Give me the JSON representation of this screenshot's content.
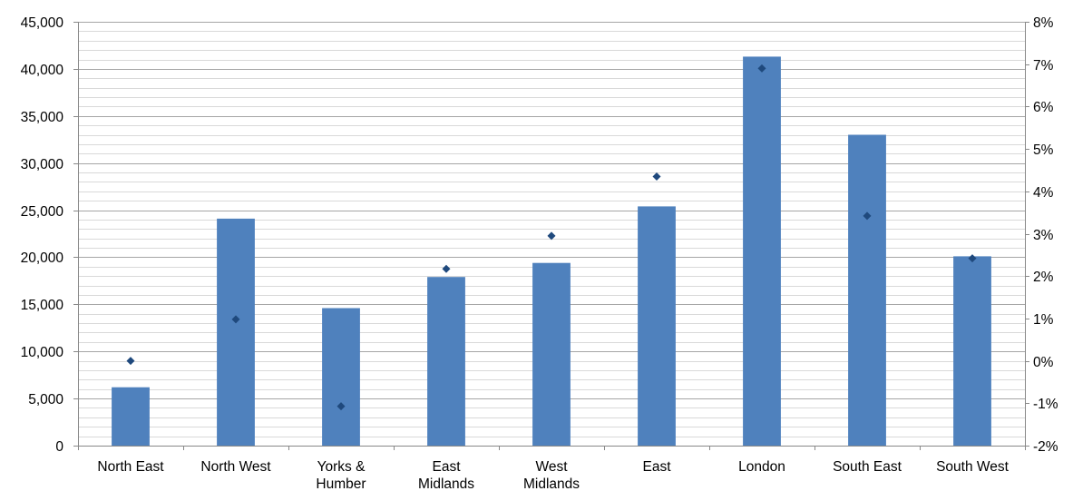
{
  "chart_data": {
    "type": "bar",
    "categories": [
      [
        "North East"
      ],
      [
        "North West"
      ],
      [
        "Yorks &",
        "Humber"
      ],
      [
        "East",
        "Midlands"
      ],
      [
        "West",
        "Midlands"
      ],
      [
        "East"
      ],
      [
        "London"
      ],
      [
        "South East"
      ],
      [
        "South West"
      ]
    ],
    "series": [
      {
        "type": "bar",
        "axis": "left",
        "color": "#4f81bd",
        "values": [
          6200,
          24100,
          14600,
          17900,
          19400,
          25400,
          41300,
          33000,
          20100
        ]
      },
      {
        "type": "scatter",
        "axis": "right",
        "marker": "diamond",
        "color": "#1f497d",
        "values": [
          0.0,
          0.98,
          -1.07,
          2.17,
          2.95,
          4.35,
          6.9,
          3.42,
          2.42
        ]
      }
    ],
    "y_left": {
      "min": 0,
      "max": 45000,
      "major": 5000,
      "minor": 1000,
      "tick_labels": [
        "0",
        "5,000",
        "10,000",
        "15,000",
        "20,000",
        "25,000",
        "30,000",
        "35,000",
        "40,000",
        "45,000"
      ]
    },
    "y_right": {
      "min": -2,
      "max": 8,
      "major": 1,
      "tick_labels": [
        "-2%",
        "-1%",
        "0%",
        "1%",
        "2%",
        "3%",
        "4%",
        "5%",
        "6%",
        "7%",
        "8%"
      ]
    },
    "grid": true,
    "legend": "none",
    "colors": {
      "bar": "#4f81bd",
      "marker": "#1f497d",
      "major_grid": "#a6a6a6",
      "minor_grid": "#d9d9d9",
      "axis": "#888888"
    }
  }
}
